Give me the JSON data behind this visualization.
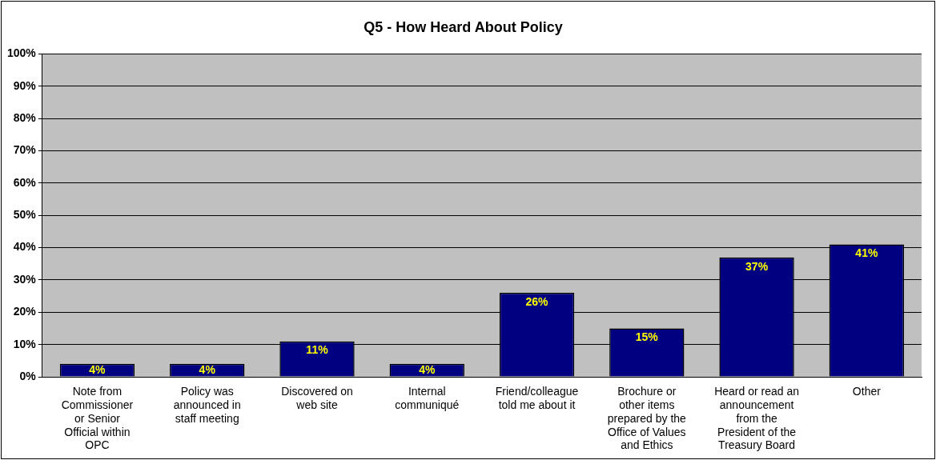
{
  "chart_data": {
    "type": "bar",
    "title": "Q5 - How Heard About Policy",
    "categories": [
      "Note from Commissioner or Senior Official within OPC",
      "Policy was announced in staff meeting",
      "Discovered on web site",
      "Internal communiqué",
      "Friend/colleague told me about it",
      "Brochure or other items prepared by the Office of Values and Ethics",
      "Heard or read an announcement from the President of the Treasury Board",
      "Other"
    ],
    "values": [
      4,
      4,
      11,
      4,
      26,
      15,
      37,
      41
    ],
    "value_labels": [
      "4%",
      "4%",
      "11%",
      "4%",
      "26%",
      "15%",
      "37%",
      "41%"
    ],
    "color": "#000080",
    "ylim": [
      0,
      100
    ],
    "yticks": [
      {
        "value": 0,
        "label": "0%"
      },
      {
        "value": 10,
        "label": "10%"
      },
      {
        "value": 20,
        "label": "20%"
      },
      {
        "value": 30,
        "label": "30%"
      },
      {
        "value": 40,
        "label": "40%"
      },
      {
        "value": 50,
        "label": "50%"
      },
      {
        "value": 60,
        "label": "60%"
      },
      {
        "value": 70,
        "label": "70%"
      },
      {
        "value": 80,
        "label": "80%"
      },
      {
        "value": 90,
        "label": "90%"
      },
      {
        "value": 100,
        "label": "100%"
      }
    ],
    "grid": "y",
    "legend": false
  }
}
